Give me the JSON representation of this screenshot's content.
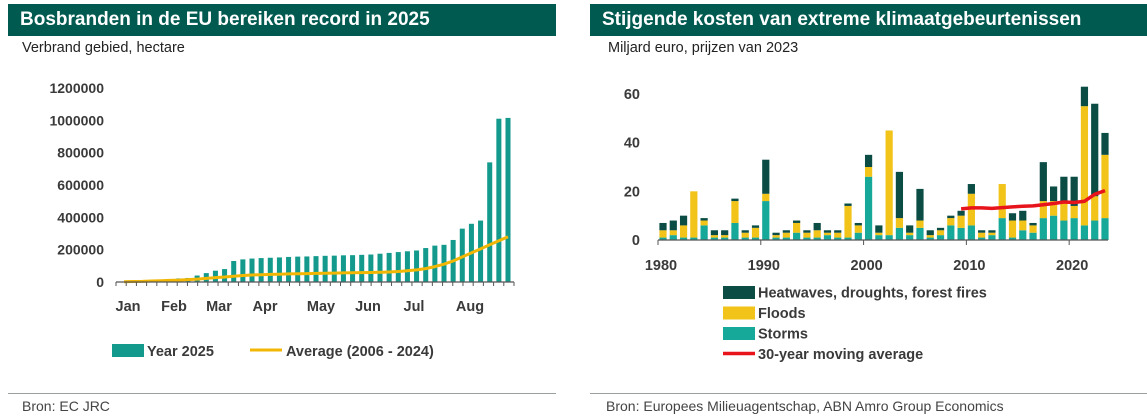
{
  "left": {
    "title": "Bosbranden in de EU bereiken record in 2025",
    "subtitle": "Verbrand gebied, hectare",
    "source": "Bron: EC JRC"
  },
  "right": {
    "title": "Stijgende kosten van extreme klimaatgebeurtenissen",
    "subtitle": "Miljard euro, prijzen van 2023",
    "source": "Bron: Europees Milieuagentschap, ABN Amro Group Economics"
  },
  "colors": {
    "title_bg": "#005a50",
    "teal_bar": "#139a8c",
    "average_line": "#f2b705",
    "dark_green": "#0b4d44",
    "floods": "#f2c318",
    "storms": "#16a898",
    "moving_avg": "#e8141b"
  },
  "chart_data": [
    {
      "type": "bar",
      "title": "Bosbranden in de EU bereiken record in 2025",
      "ylabel": "Verbrand gebied, hectare",
      "ylim": [
        0,
        1200000
      ],
      "yticks": [
        0,
        200000,
        400000,
        600000,
        800000,
        1000000,
        1200000
      ],
      "ytick_labels": [
        "0",
        "200000",
        "400000",
        "600000",
        "800000",
        "1000000",
        "1200000"
      ],
      "xtick_labels": [
        "Jan",
        "Feb",
        "Mar",
        "Apr",
        "May",
        "Jun",
        "Jul",
        "Aug"
      ],
      "legend": [
        "Year 2025",
        "Average (2006 - 2024)"
      ],
      "legend_position": "bottom",
      "grid": false,
      "series": [
        {
          "name": "Year 2025",
          "kind": "bar",
          "values": [
            3000,
            6000,
            8000,
            12000,
            15000,
            18000,
            22000,
            25000,
            40000,
            55000,
            70000,
            80000,
            130000,
            140000,
            145000,
            148000,
            150000,
            152000,
            155000,
            157000,
            158000,
            160000,
            162000,
            163000,
            165000,
            166000,
            168000,
            170000,
            175000,
            180000,
            185000,
            190000,
            195000,
            210000,
            225000,
            230000,
            260000,
            330000,
            360000,
            380000,
            740000,
            1010000,
            1015000
          ]
        },
        {
          "name": "Average (2006 - 2024)",
          "kind": "line",
          "values": [
            2000,
            3000,
            4000,
            6000,
            8000,
            10000,
            12000,
            15000,
            18000,
            22000,
            27000,
            31000,
            36000,
            40000,
            43000,
            45000,
            47000,
            48000,
            50000,
            51000,
            52000,
            53000,
            54000,
            55000,
            56000,
            57000,
            58000,
            59000,
            60000,
            62000,
            65000,
            69000,
            75000,
            83000,
            95000,
            110000,
            130000,
            155000,
            180000,
            205000,
            230000,
            255000,
            280000
          ]
        }
      ]
    },
    {
      "type": "bar",
      "stacked": true,
      "title": "Stijgende kosten van extreme klimaatgebeurtenissen",
      "ylabel": "Miljard euro, prijzen van 2023",
      "ylim": [
        0,
        65
      ],
      "yticks": [
        0,
        20,
        40,
        60
      ],
      "xlim": [
        1980,
        2023
      ],
      "xticks": [
        1980,
        1990,
        2000,
        2010,
        2020
      ],
      "legend_position": "bottom-left",
      "grid": false,
      "x": [
        1980,
        1981,
        1982,
        1983,
        1984,
        1985,
        1986,
        1987,
        1988,
        1989,
        1990,
        1991,
        1992,
        1993,
        1994,
        1995,
        1996,
        1997,
        1998,
        1999,
        2000,
        2001,
        2002,
        2003,
        2004,
        2005,
        2006,
        2007,
        2008,
        2009,
        2010,
        2011,
        2012,
        2013,
        2014,
        2015,
        2016,
        2017,
        2018,
        2019,
        2020,
        2021,
        2022,
        2023
      ],
      "series": [
        {
          "name": "Storms",
          "values": [
            1,
            2,
            1,
            1,
            6,
            1,
            1,
            7,
            1,
            1,
            16,
            1,
            1,
            3,
            1,
            1,
            2,
            1,
            1,
            3,
            26,
            2,
            2,
            5,
            2,
            5,
            1,
            2,
            6,
            5,
            6,
            1,
            2,
            9,
            1,
            4,
            3,
            9,
            10,
            8,
            9,
            6,
            8,
            9
          ]
        },
        {
          "name": "Floods",
          "values": [
            3,
            2,
            5,
            19,
            2,
            1,
            1,
            9,
            2,
            4,
            3,
            1,
            2,
            4,
            2,
            3,
            1,
            2,
            13,
            3,
            4,
            1,
            43,
            4,
            1,
            3,
            1,
            2,
            3,
            5,
            13,
            2,
            1,
            14,
            7,
            4,
            3,
            7,
            6,
            7,
            5,
            49,
            10,
            26
          ]
        },
        {
          "name": "Heatwaves, droughts, forest fires",
          "values": [
            3,
            4,
            4,
            0,
            1,
            2,
            2,
            1,
            1,
            1,
            14,
            1,
            1,
            1,
            1,
            3,
            1,
            1,
            1,
            1,
            5,
            3,
            0,
            19,
            3,
            13,
            2,
            1,
            1,
            2,
            4,
            1,
            1,
            0,
            3,
            4,
            1,
            16,
            6,
            11,
            12,
            8,
            38,
            9
          ]
        },
        {
          "name": "30-year moving average",
          "kind": "line",
          "x": [
            2009,
            2010,
            2011,
            2012,
            2013,
            2014,
            2015,
            2016,
            2017,
            2018,
            2019,
            2020,
            2021,
            2022,
            2023
          ],
          "values": [
            12.8,
            13.2,
            13.2,
            13.0,
            13.3,
            13.6,
            13.9,
            14.0,
            14.5,
            15.0,
            15.6,
            15.4,
            15.9,
            18.8,
            20.3
          ]
        }
      ]
    }
  ]
}
